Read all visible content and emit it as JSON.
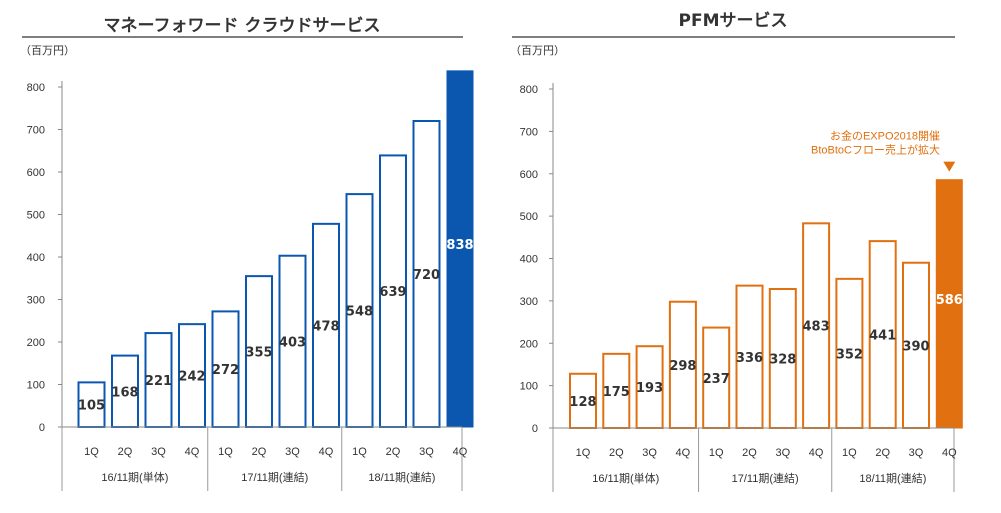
{
  "chart_data": [
    {
      "type": "bar",
      "title": "マネーフォワード クラウドサービス",
      "unit": "（百万円）",
      "ylim": [
        0,
        800
      ],
      "yticks": [
        0,
        100,
        200,
        300,
        400,
        500,
        600,
        700,
        800
      ],
      "categories": [
        "1Q",
        "2Q",
        "3Q",
        "4Q",
        "1Q",
        "2Q",
        "3Q",
        "4Q",
        "1Q",
        "2Q",
        "3Q",
        "4Q"
      ],
      "values": [
        105,
        168,
        221,
        242,
        272,
        355,
        403,
        478,
        548,
        639,
        720,
        838
      ],
      "periods": [
        "16/11期(単体)",
        "17/11期(連結)",
        "18/11期(連結)"
      ],
      "color": "#0b57b0",
      "highlight_index": 11,
      "annotation": ""
    },
    {
      "type": "bar",
      "title": "PFMサービス",
      "unit": "（百万円）",
      "ylim": [
        0,
        800
      ],
      "yticks": [
        0,
        100,
        200,
        300,
        400,
        500,
        600,
        700,
        800
      ],
      "categories": [
        "1Q",
        "2Q",
        "3Q",
        "4Q",
        "1Q",
        "2Q",
        "3Q",
        "4Q",
        "1Q",
        "2Q",
        "3Q",
        "4Q"
      ],
      "values": [
        128,
        175,
        193,
        298,
        237,
        336,
        328,
        483,
        352,
        441,
        390,
        586
      ],
      "periods": [
        "16/11期(単体)",
        "17/11期(連結)",
        "18/11期(連結)"
      ],
      "color": "#e07010",
      "highlight_index": 11,
      "annotation": [
        "お金のEXPO2018開催",
        "BtoBtoCフロー売上が拡大"
      ]
    }
  ]
}
